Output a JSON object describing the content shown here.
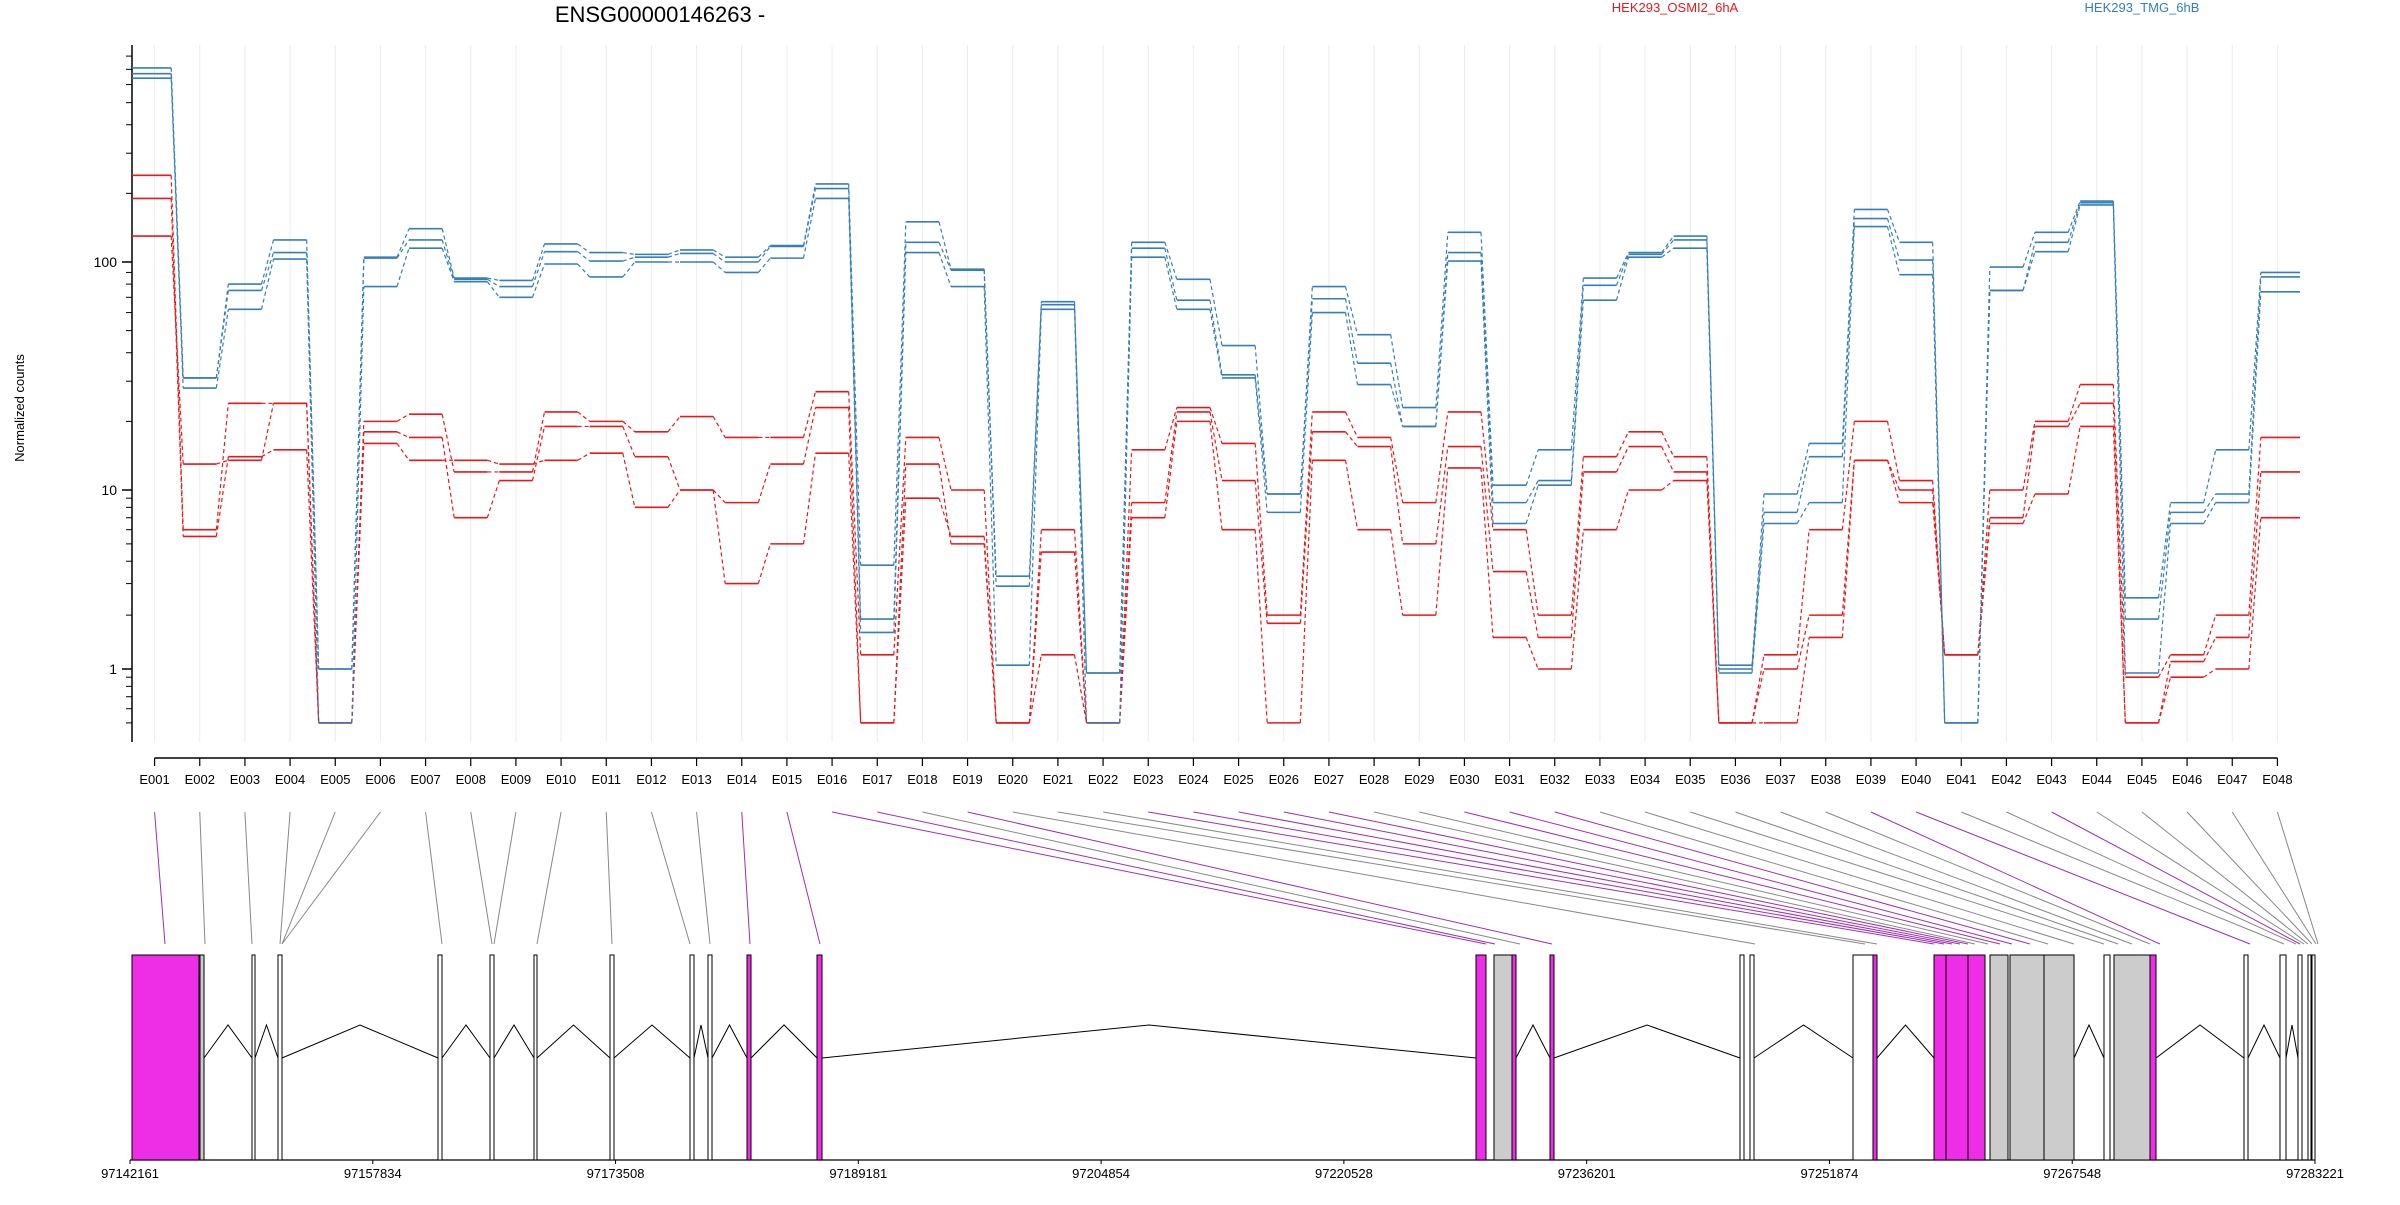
{
  "chart_data": {
    "type": "line",
    "title": "ENSG00000146263 -",
    "ylabel": "Normalized counts",
    "y_scale": "log",
    "ylim": [
      0.5,
      900
    ],
    "y_ticks": [
      1,
      10,
      100
    ],
    "y_tick_labels": [
      "1",
      "10",
      "100"
    ],
    "legend_position": "top",
    "colors": {
      "HEK293_OSMI2_6hA": "#e31a1c",
      "HEK293_TMG_6hB": "#377eb8",
      "highlight": "#ee2ee6",
      "connector_highlight": "#9b30b0",
      "connector": "#888888",
      "box_gray": "#cccccc"
    },
    "categories": [
      "E001",
      "E002",
      "E003",
      "E004",
      "E005",
      "E006",
      "E007",
      "E008",
      "E009",
      "E010",
      "E011",
      "E012",
      "E013",
      "E014",
      "E015",
      "E016",
      "E017",
      "E018",
      "E019",
      "E020",
      "E021",
      "E022",
      "E023",
      "E024",
      "E025",
      "E026",
      "E027",
      "E028",
      "E029",
      "E030",
      "E031",
      "E032",
      "E033",
      "E034",
      "E035",
      "E036",
      "E037",
      "E038",
      "E039",
      "E040",
      "E041",
      "E042",
      "E043",
      "E044",
      "E045",
      "E046",
      "E047",
      "E048"
    ],
    "series": [
      {
        "name": "HEK293_OSMI2_6hA",
        "values": [
          240,
          6,
          24,
          24,
          0.5,
          20,
          21.5,
          12,
          12,
          22,
          20,
          18,
          21,
          17,
          17,
          27,
          1.2,
          17,
          10,
          0.5,
          6,
          0.5,
          15,
          23,
          16,
          2,
          22,
          17,
          8.5,
          22,
          6,
          2,
          14,
          18,
          14,
          0.5,
          1.2,
          6,
          20,
          11,
          1.2,
          10,
          20,
          29,
          0.9,
          1.2,
          2,
          17
        ]
      },
      {
        "name": "HEK293_OSMI2_6hA",
        "values": [
          190,
          5.5,
          14,
          15,
          0.5,
          18,
          17,
          7,
          11,
          19,
          19,
          14,
          10,
          8.5,
          13,
          23,
          0.5,
          13,
          5,
          0.5,
          4.5,
          0.5,
          8.5,
          22,
          11,
          1.8,
          18,
          15.5,
          5,
          15.5,
          3.5,
          1.5,
          12,
          15.5,
          12,
          0.5,
          1,
          2,
          13.5,
          10,
          1.2,
          7,
          19,
          24,
          0.5,
          1.1,
          1.5,
          12
        ]
      },
      {
        "name": "HEK293_OSMI2_6hA",
        "values": [
          130,
          13,
          13.5,
          24,
          0.5,
          16,
          13.5,
          13.5,
          13,
          13.5,
          14.5,
          8,
          10,
          3,
          5,
          14.5,
          0.5,
          9,
          5.5,
          0.5,
          1.2,
          0.5,
          7,
          20,
          6,
          0.5,
          13.5,
          6,
          2,
          12.5,
          1.5,
          1,
          6,
          10,
          11,
          0.5,
          0.5,
          1.5,
          13.5,
          8.5,
          1.2,
          6.5,
          9.5,
          19,
          0.5,
          0.9,
          1,
          7
        ]
      },
      {
        "name": "HEK293_TMG_6hB",
        "values": [
          710,
          31,
          80,
          125,
          1,
          105,
          140,
          85,
          83,
          120,
          110,
          108,
          113,
          105,
          118,
          220,
          3.8,
          150,
          93,
          3.3,
          67,
          0.95,
          122,
          84,
          43,
          9.5,
          78,
          48,
          23,
          135,
          10.5,
          15,
          85,
          110,
          130,
          1.05,
          9.5,
          16,
          170,
          122,
          0.5,
          95,
          135,
          185,
          2.5,
          8.5,
          15,
          90
        ]
      },
      {
        "name": "HEK293_TMG_6hB",
        "values": [
          670,
          31,
          75,
          110,
          1,
          104,
          125,
          84,
          78,
          111,
          101,
          105,
          109,
          100,
          117,
          210,
          1.9,
          122,
          92,
          2.9,
          65,
          0.95,
          115,
          68,
          32,
          9.5,
          69,
          36,
          19,
          110,
          8.5,
          11,
          79,
          108,
          125,
          1,
          7.5,
          14,
          155,
          102,
          0.5,
          75,
          122,
          182,
          1.9,
          7.5,
          9.5,
          86
        ]
      },
      {
        "name": "HEK293_TMG_6hB",
        "values": [
          640,
          28,
          62,
          103,
          0.5,
          78,
          115,
          82,
          70,
          98,
          86,
          100,
          100,
          90,
          104,
          190,
          1.6,
          110,
          78,
          1.05,
          62,
          0.5,
          105,
          62,
          31,
          7.5,
          60,
          29,
          19,
          101,
          6.5,
          10.5,
          68,
          105,
          115,
          0.95,
          6.5,
          8.5,
          143,
          88,
          0.5,
          75,
          111,
          178,
          0.95,
          6.5,
          8.5,
          74
        ]
      }
    ],
    "gene_axis": {
      "tick_labels": [
        "97142161",
        "97157834",
        "97173508",
        "97189181",
        "97204854",
        "97220528",
        "97236201",
        "97251874",
        "97267548",
        "97283221"
      ]
    }
  }
}
